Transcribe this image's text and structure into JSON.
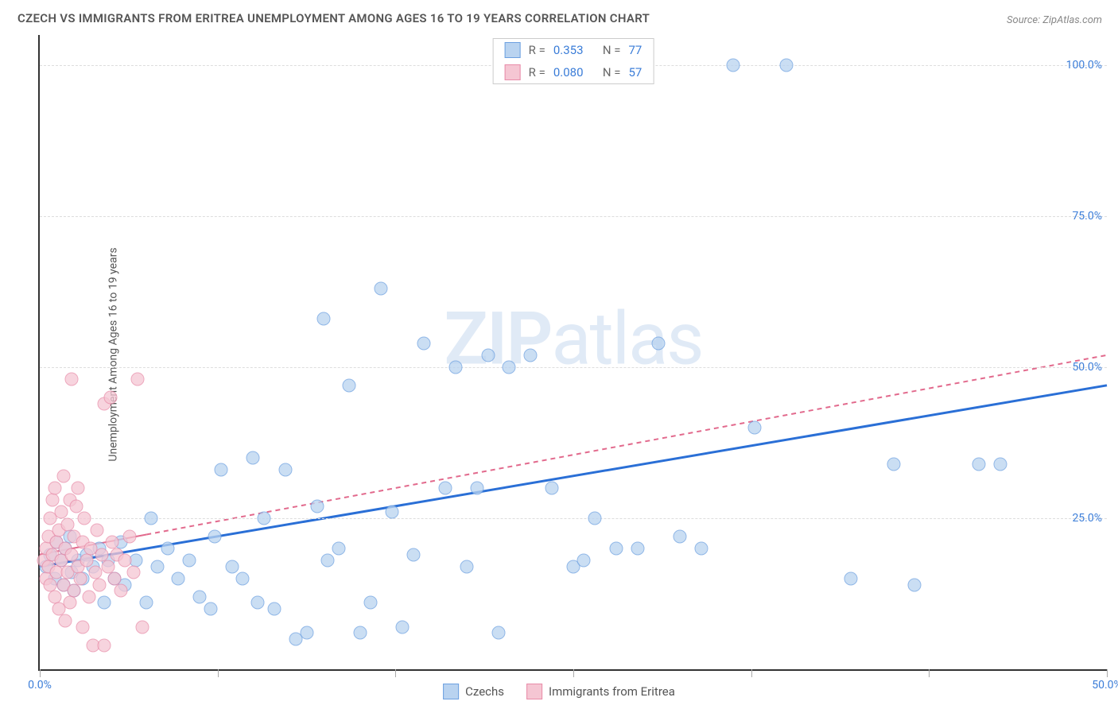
{
  "title": "CZECH VS IMMIGRANTS FROM ERITREA UNEMPLOYMENT AMONG AGES 16 TO 19 YEARS CORRELATION CHART",
  "source": "Source: ZipAtlas.com",
  "ylabel": "Unemployment Among Ages 16 to 19 years",
  "watermark_bold": "ZIP",
  "watermark_rest": "atlas",
  "chart": {
    "type": "scatter",
    "xlim": [
      0,
      50
    ],
    "ylim": [
      0,
      105
    ],
    "x_ticks": [
      0,
      8.33,
      16.67,
      25,
      33.33,
      41.67,
      50
    ],
    "x_tick_labels": {
      "0": "0.0%",
      "50": "50.0%"
    },
    "y_gridlines": [
      25,
      50,
      75,
      100
    ],
    "y_tick_labels": {
      "25": "25.0%",
      "50": "50.0%",
      "75": "75.0%",
      "100": "100.0%"
    },
    "grid_color": "#dddddd",
    "background_color": "#ffffff",
    "axis_color": "#333333",
    "tick_label_color": "#3b7dd8"
  },
  "series": [
    {
      "name": "Czechs",
      "label": "Czechs",
      "fill": "#b9d3f0",
      "stroke": "#6ca0e0",
      "line_color": "#2a6fd6",
      "line_dash": "none",
      "line_width": 3,
      "R": "0.353",
      "N": "77",
      "regression": {
        "x1": 0,
        "y1": 17,
        "x2": 50,
        "y2": 47,
        "solid_until_x": 50
      },
      "points": [
        [
          0.3,
          17
        ],
        [
          0.5,
          19
        ],
        [
          0.7,
          15
        ],
        [
          0.8,
          21
        ],
        [
          1.0,
          18
        ],
        [
          1.1,
          14
        ],
        [
          1.2,
          20
        ],
        [
          1.4,
          22
        ],
        [
          1.5,
          16
        ],
        [
          1.6,
          13
        ],
        [
          1.8,
          18
        ],
        [
          2.0,
          15
        ],
        [
          2.2,
          19
        ],
        [
          2.5,
          17
        ],
        [
          2.8,
          20
        ],
        [
          3.0,
          11
        ],
        [
          3.2,
          18
        ],
        [
          3.5,
          15
        ],
        [
          3.8,
          21
        ],
        [
          4.0,
          14
        ],
        [
          4.5,
          18
        ],
        [
          5.0,
          11
        ],
        [
          5.2,
          25
        ],
        [
          5.5,
          17
        ],
        [
          6.0,
          20
        ],
        [
          6.5,
          15
        ],
        [
          7.0,
          18
        ],
        [
          7.5,
          12
        ],
        [
          8.0,
          10
        ],
        [
          8.2,
          22
        ],
        [
          8.5,
          33
        ],
        [
          9.0,
          17
        ],
        [
          9.5,
          15
        ],
        [
          10.0,
          35
        ],
        [
          10.2,
          11
        ],
        [
          10.5,
          25
        ],
        [
          11.0,
          10
        ],
        [
          11.5,
          33
        ],
        [
          12.0,
          5
        ],
        [
          12.5,
          6
        ],
        [
          13.0,
          27
        ],
        [
          13.3,
          58
        ],
        [
          13.5,
          18
        ],
        [
          14.0,
          20
        ],
        [
          14.5,
          47
        ],
        [
          15.0,
          6
        ],
        [
          15.5,
          11
        ],
        [
          16.0,
          63
        ],
        [
          16.5,
          26
        ],
        [
          17.0,
          7
        ],
        [
          17.5,
          19
        ],
        [
          18.0,
          54
        ],
        [
          19.0,
          30
        ],
        [
          19.5,
          50
        ],
        [
          20.0,
          17
        ],
        [
          20.5,
          30
        ],
        [
          21.0,
          52
        ],
        [
          21.5,
          6
        ],
        [
          22.0,
          50
        ],
        [
          23.0,
          52
        ],
        [
          24.0,
          30
        ],
        [
          25.0,
          17
        ],
        [
          25.5,
          18
        ],
        [
          26.0,
          25
        ],
        [
          27.0,
          20
        ],
        [
          28.0,
          20
        ],
        [
          29.0,
          54
        ],
        [
          30.0,
          22
        ],
        [
          31.0,
          20
        ],
        [
          32.5,
          100
        ],
        [
          33.5,
          40
        ],
        [
          35.0,
          100
        ],
        [
          38.0,
          15
        ],
        [
          40.0,
          34
        ],
        [
          41.0,
          14
        ],
        [
          44.0,
          34
        ],
        [
          45.0,
          34
        ]
      ]
    },
    {
      "name": "Immigrants from Eritrea",
      "label": "Immigrants from Eritrea",
      "fill": "#f5c6d3",
      "stroke": "#e88ba8",
      "line_color": "#e26a8d",
      "line_dash": "6,5",
      "line_width": 2,
      "R": "0.080",
      "N": "57",
      "regression": {
        "x1": 0,
        "y1": 19,
        "x2": 50,
        "y2": 52,
        "solid_until_x": 5
      },
      "points": [
        [
          0.2,
          18
        ],
        [
          0.3,
          20
        ],
        [
          0.3,
          15
        ],
        [
          0.4,
          22
        ],
        [
          0.4,
          17
        ],
        [
          0.5,
          25
        ],
        [
          0.5,
          14
        ],
        [
          0.6,
          28
        ],
        [
          0.6,
          19
        ],
        [
          0.7,
          12
        ],
        [
          0.7,
          30
        ],
        [
          0.8,
          21
        ],
        [
          0.8,
          16
        ],
        [
          0.9,
          23
        ],
        [
          0.9,
          10
        ],
        [
          1.0,
          26
        ],
        [
          1.0,
          18
        ],
        [
          1.1,
          32
        ],
        [
          1.1,
          14
        ],
        [
          1.2,
          20
        ],
        [
          1.2,
          8
        ],
        [
          1.3,
          24
        ],
        [
          1.3,
          16
        ],
        [
          1.4,
          28
        ],
        [
          1.4,
          11
        ],
        [
          1.5,
          48
        ],
        [
          1.5,
          19
        ],
        [
          1.6,
          22
        ],
        [
          1.6,
          13
        ],
        [
          1.7,
          27
        ],
        [
          1.8,
          17
        ],
        [
          1.8,
          30
        ],
        [
          1.9,
          15
        ],
        [
          2.0,
          21
        ],
        [
          2.0,
          7
        ],
        [
          2.1,
          25
        ],
        [
          2.2,
          18
        ],
        [
          2.3,
          12
        ],
        [
          2.4,
          20
        ],
        [
          2.5,
          4
        ],
        [
          2.6,
          16
        ],
        [
          2.7,
          23
        ],
        [
          2.8,
          14
        ],
        [
          2.9,
          19
        ],
        [
          3.0,
          44
        ],
        [
          3.0,
          4
        ],
        [
          3.2,
          17
        ],
        [
          3.3,
          45
        ],
        [
          3.4,
          21
        ],
        [
          3.5,
          15
        ],
        [
          3.6,
          19
        ],
        [
          3.8,
          13
        ],
        [
          4.0,
          18
        ],
        [
          4.2,
          22
        ],
        [
          4.4,
          16
        ],
        [
          4.6,
          48
        ],
        [
          4.8,
          7
        ]
      ]
    }
  ],
  "legend_bottom": [
    {
      "label": "Czechs",
      "fill": "#b9d3f0",
      "stroke": "#6ca0e0"
    },
    {
      "label": "Immigrants from Eritrea",
      "fill": "#f5c6d3",
      "stroke": "#e88ba8"
    }
  ]
}
